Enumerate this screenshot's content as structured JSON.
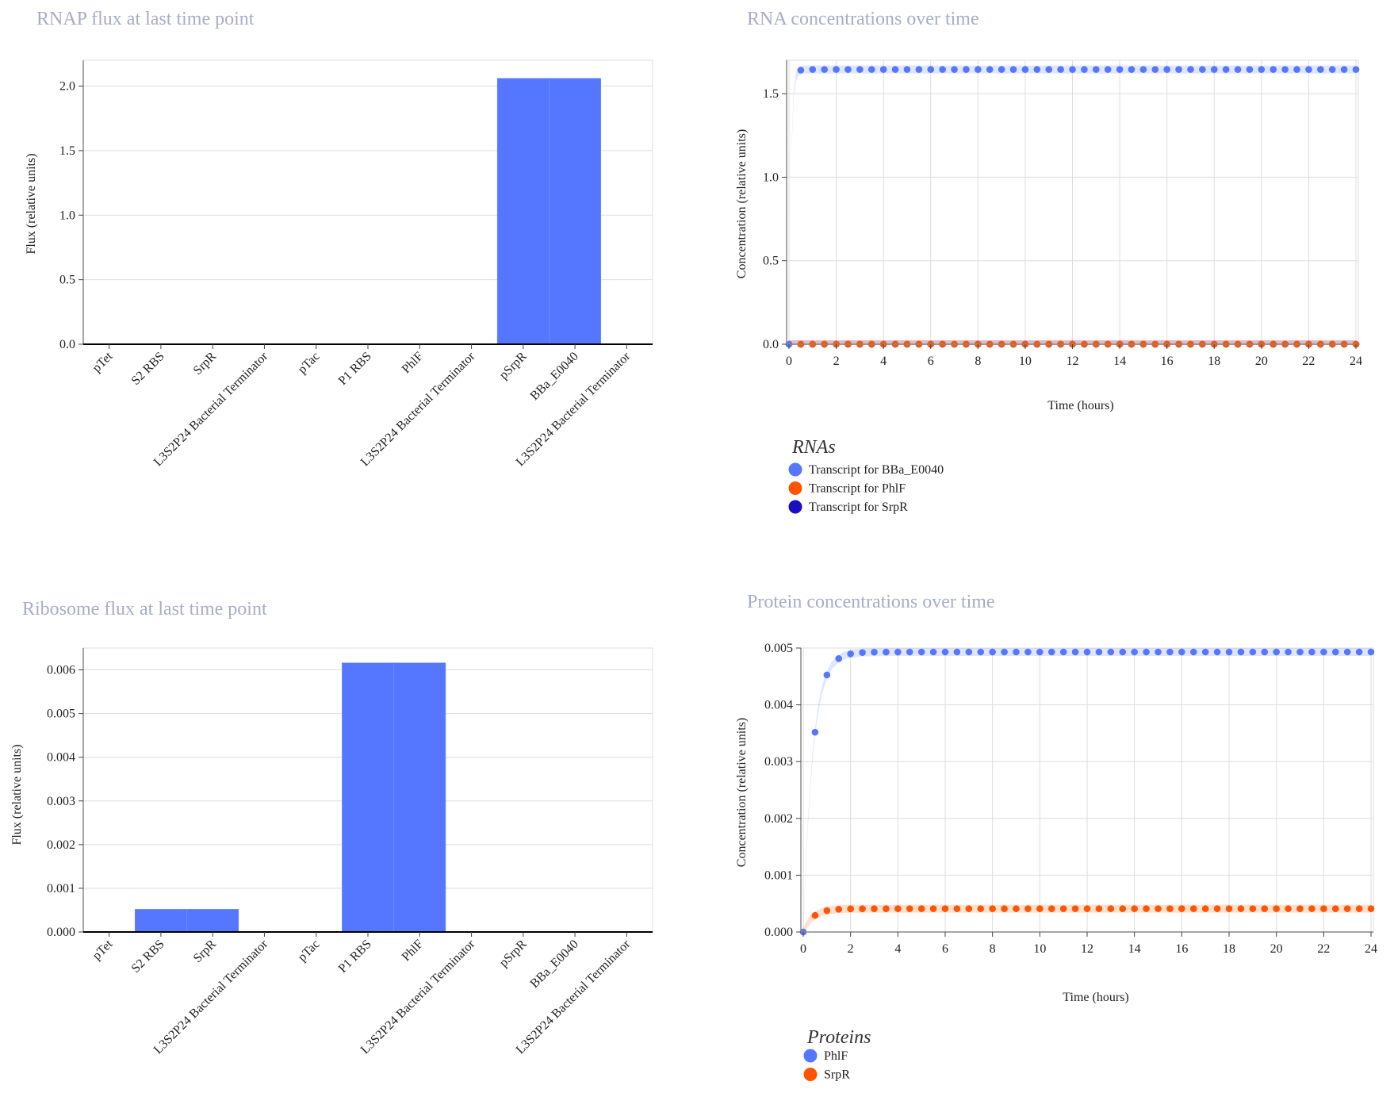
{
  "chart_data": [
    {
      "id": "rnap",
      "type": "bar",
      "title": "RNAP flux at last time point",
      "xlabel": "",
      "ylabel": "Flux (relative units)",
      "ylim": [
        0,
        2.2
      ],
      "yticks": [
        0.0,
        0.5,
        1.0,
        1.5,
        2.0
      ],
      "ytick_labels": [
        "0.0",
        "0.5",
        "1.0",
        "1.5",
        "2.0"
      ],
      "categories": [
        "pTet",
        "S2 RBS",
        "SrpR",
        "L3S2P24 Bacterial Terminator",
        "pTac",
        "P1 RBS",
        "PhlF",
        "L3S2P24 Bacterial Terminator",
        "pSrpR",
        "BBa_E0040",
        "L3S2P24 Bacterial Terminator"
      ],
      "values": [
        0,
        0,
        0,
        0,
        0,
        0,
        0,
        0,
        2.06,
        2.06,
        0
      ],
      "color": "#5577ff",
      "grid": true
    },
    {
      "id": "ribosome",
      "type": "bar",
      "title": "Ribosome flux at last time point",
      "xlabel": "",
      "ylabel": "Flux (relative units)",
      "ylim": [
        0,
        0.0065
      ],
      "yticks": [
        0.0,
        0.001,
        0.002,
        0.003,
        0.004,
        0.005,
        0.006
      ],
      "ytick_labels": [
        "0.000",
        "0.001",
        "0.002",
        "0.003",
        "0.004",
        "0.005",
        "0.006"
      ],
      "categories": [
        "pTet",
        "S2 RBS",
        "SrpR",
        "L3S2P24 Bacterial Terminator",
        "pTac",
        "P1 RBS",
        "PhlF",
        "L3S2P24 Bacterial Terminator",
        "pSrpR",
        "BBa_E0040",
        "L3S2P24 Bacterial Terminator"
      ],
      "values": [
        0,
        0.00052,
        0.00052,
        0,
        0,
        0.00616,
        0.00616,
        0,
        0,
        0,
        0
      ],
      "color": "#5577ff",
      "grid": true
    },
    {
      "id": "rna",
      "type": "scatter",
      "title": "RNA concentrations over time",
      "xlabel": "Time (hours)",
      "ylabel": "Concentration (relative units)",
      "xlim": [
        -0.1,
        24.1
      ],
      "ylim": [
        0,
        1.7
      ],
      "xticks": [
        0,
        2,
        4,
        6,
        8,
        10,
        12,
        14,
        16,
        18,
        20,
        22,
        24
      ],
      "xtick_labels": [
        "0",
        "2",
        "4",
        "6",
        "8",
        "10",
        "12",
        "14",
        "16",
        "18",
        "20",
        "22",
        "24"
      ],
      "yticks": [
        0.0,
        0.5,
        1.0,
        1.5
      ],
      "ytick_labels": [
        "0.0",
        "0.5",
        "1.0",
        "1.5"
      ],
      "legend_title": "RNAs",
      "legend_position": "bottom-left",
      "grid": true,
      "series": [
        {
          "name": "Transcript for BBa_E0040",
          "color": "#5577ff",
          "kind": "saturating",
          "plateau": 1.645,
          "rate": 12
        },
        {
          "name": "Transcript for PhlF",
          "color": "#ff5500",
          "kind": "constant",
          "plateau": 0.0
        },
        {
          "name": "Transcript for SrpR",
          "color": "#1a0fc0",
          "kind": "constant",
          "plateau": 0.0
        }
      ]
    },
    {
      "id": "protein",
      "type": "scatter",
      "title": "Protein concentrations over time",
      "xlabel": "Time (hours)",
      "ylabel": "Concentration (relative units)",
      "xlim": [
        -0.1,
        24.1
      ],
      "ylim": [
        0,
        0.005
      ],
      "xticks": [
        0,
        2,
        4,
        6,
        8,
        10,
        12,
        14,
        16,
        18,
        20,
        22,
        24
      ],
      "xtick_labels": [
        "0",
        "2",
        "4",
        "6",
        "8",
        "10",
        "12",
        "14",
        "16",
        "18",
        "20",
        "22",
        "24"
      ],
      "yticks": [
        0.0,
        0.001,
        0.002,
        0.003,
        0.004,
        0.005
      ],
      "ytick_labels": [
        "0.000",
        "0.001",
        "0.002",
        "0.003",
        "0.004",
        "0.005"
      ],
      "legend_title": "Proteins",
      "legend_position": "bottom-left",
      "grid": true,
      "series": [
        {
          "name": "PhlF",
          "color": "#5577ff",
          "kind": "saturating",
          "plateau": 0.00493,
          "rate": 2.5
        },
        {
          "name": "SrpR",
          "color": "#ff5500",
          "kind": "saturating",
          "plateau": 0.00041,
          "rate": 2.5
        }
      ]
    }
  ]
}
